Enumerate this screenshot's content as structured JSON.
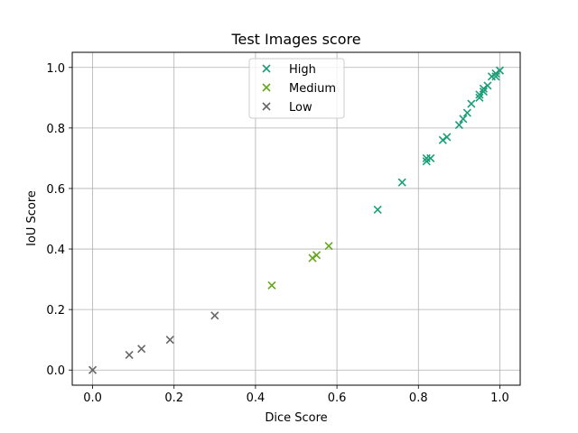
{
  "chart_data": {
    "type": "scatter",
    "title": "Test Images score",
    "xlabel": "Dice Score",
    "ylabel": "IoU Score",
    "xlim": [
      -0.05,
      1.05
    ],
    "ylim": [
      -0.05,
      1.05
    ],
    "xticks": [
      0.0,
      0.2,
      0.4,
      0.6,
      0.8,
      1.0
    ],
    "yticks": [
      0.0,
      0.2,
      0.4,
      0.6,
      0.8,
      1.0
    ],
    "tick_labels": [
      "0.0",
      "0.2",
      "0.4",
      "0.6",
      "0.8",
      "1.0"
    ],
    "grid": true,
    "legend_position": "top-center",
    "marker": "x",
    "series": [
      {
        "name": "High",
        "color": "#1b9e77",
        "x": [
          0.7,
          0.76,
          0.82,
          0.82,
          0.83,
          0.86,
          0.87,
          0.9,
          0.91,
          0.92,
          0.93,
          0.95,
          0.95,
          0.96,
          0.96,
          0.97,
          0.98,
          0.99,
          0.99,
          1.0
        ],
        "y": [
          0.53,
          0.62,
          0.69,
          0.7,
          0.7,
          0.76,
          0.77,
          0.81,
          0.83,
          0.85,
          0.88,
          0.9,
          0.91,
          0.92,
          0.93,
          0.94,
          0.97,
          0.97,
          0.98,
          0.99
        ]
      },
      {
        "name": "Medium",
        "color": "#66a61e",
        "x": [
          0.44,
          0.54,
          0.55,
          0.58
        ],
        "y": [
          0.28,
          0.37,
          0.38,
          0.41
        ]
      },
      {
        "name": "Low",
        "color": "#666666",
        "x": [
          0.0,
          0.09,
          0.12,
          0.19,
          0.3
        ],
        "y": [
          0.0,
          0.05,
          0.07,
          0.1,
          0.18
        ]
      }
    ]
  }
}
